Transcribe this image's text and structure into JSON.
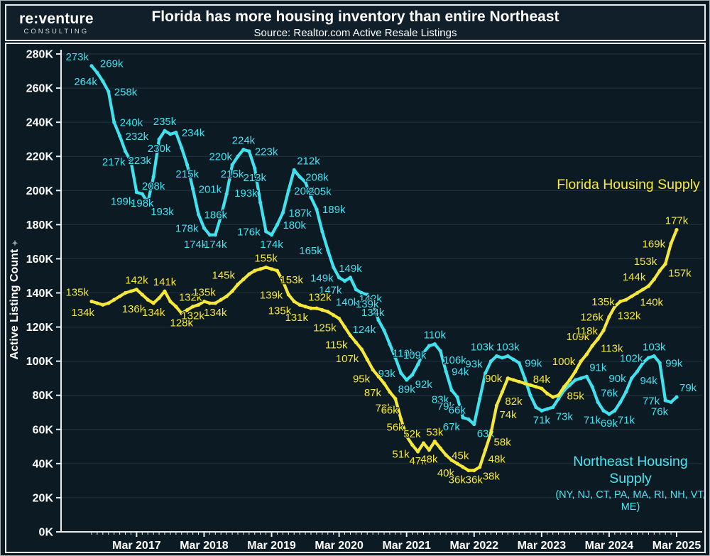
{
  "header": {
    "logo": "re:venture",
    "logo_sub": "CONSULTING",
    "title": "Florida has more housing inventory than entire Northeast",
    "subtitle": "Source: Realtor.com Active Resale Listings"
  },
  "chart_data": {
    "type": "line",
    "ylabel": "Active Listing Count",
    "ylabel_mark": "✦",
    "ylim": [
      0,
      280
    ],
    "grid": "horizontal",
    "y_ticks": [
      "0K",
      "20K",
      "40K",
      "60K",
      "80K",
      "100K",
      "120K",
      "140K",
      "160K",
      "180K",
      "200K",
      "220K",
      "240K",
      "260K",
      "280K"
    ],
    "x_tick_labels": [
      "Mar 2017",
      "Mar 2018",
      "Mar 2019",
      "Mar 2020",
      "Mar 2021",
      "Mar 2022",
      "Mar 2023",
      "Mar 2024",
      "Mar 2025"
    ],
    "x_tick_months": [
      8,
      20,
      32,
      44,
      56,
      68,
      80,
      92,
      104
    ],
    "x_start_label": "Jul 2016",
    "months_total": 105,
    "annotations": {
      "florida": {
        "label": "Florida Housing Supply",
        "color": "#f8e93c"
      },
      "northeast": {
        "label": "Northeast Housing Supply",
        "states": "(NY, NJ, CT, PA, MA, RI, NH, VT, ME)",
        "color": "#49e6f2"
      }
    },
    "series": [
      {
        "name": "Northeast Housing Supply",
        "color": "#41e2ef",
        "unit": "k",
        "points": [
          [
            273,
            "273k",
            "al"
          ],
          [
            269,
            "269k",
            "ar"
          ],
          [
            264,
            "264k",
            "l"
          ],
          [
            258,
            "258k",
            "r"
          ],
          [
            240,
            "240k",
            "r"
          ],
          [
            232,
            "232k",
            "r"
          ],
          [
            223,
            "223k",
            "br"
          ],
          [
            217,
            "217k",
            "l"
          ],
          [
            199,
            "199k",
            "bl"
          ],
          [
            198,
            "198k",
            "b"
          ],
          [
            193,
            "193k",
            "br"
          ],
          [
            208,
            "208k",
            "b"
          ],
          [
            230,
            "230k",
            "b"
          ],
          [
            235,
            "235k",
            "a"
          ],
          [
            233
          ],
          [
            234,
            "234k",
            "r"
          ],
          [
            225
          ],
          [
            215,
            "215k",
            "b"
          ],
          [
            201,
            "201k",
            "r"
          ],
          [
            186,
            "186k",
            "r"
          ],
          [
            178,
            "178k",
            "l"
          ],
          [
            174,
            "174k",
            "bl"
          ],
          [
            174,
            "174k",
            "b"
          ],
          [
            185
          ],
          [
            198
          ],
          [
            215,
            "215k",
            "b"
          ],
          [
            220,
            "220k",
            "l"
          ],
          [
            224,
            "224k",
            "a"
          ],
          [
            223,
            "223k",
            "r"
          ],
          [
            213,
            "213k",
            "b"
          ],
          [
            193,
            "193k",
            "al"
          ],
          [
            176,
            "176k",
            "l"
          ],
          [
            174,
            "174k",
            "b"
          ],
          [
            180,
            "180k",
            "r"
          ],
          [
            187,
            "187k",
            "r"
          ],
          [
            200,
            "200k",
            "r"
          ],
          [
            212,
            "212k",
            "ar"
          ],
          [
            208,
            "208k",
            "r"
          ],
          [
            205,
            "205k",
            "br"
          ],
          [
            196
          ],
          [
            189,
            "189k",
            "r"
          ],
          [
            176
          ],
          [
            165,
            "165k",
            "l"
          ],
          [
            155
          ],
          [
            149,
            "149k",
            "l"
          ],
          [
            147,
            "147k",
            "bl"
          ],
          [
            149,
            "149k",
            "a"
          ],
          [
            142,
            "142k",
            "br"
          ],
          [
            140,
            "140k",
            "bl"
          ],
          [
            139,
            "139k",
            "b"
          ],
          [
            134,
            "134k",
            "b"
          ],
          [
            124,
            "124k",
            "bl"
          ],
          [
            118
          ],
          [
            110,
            "110k",
            "br"
          ],
          [
            102
          ],
          [
            93,
            "93k",
            "l"
          ],
          [
            89,
            "89k",
            "b"
          ],
          [
            92,
            "92k",
            "br"
          ],
          [
            98
          ],
          [
            105
          ],
          [
            109,
            "109k",
            "bl"
          ],
          [
            110,
            "110k",
            "a"
          ],
          [
            106,
            "106k",
            "br"
          ],
          [
            94,
            "94k",
            "r"
          ],
          [
            83,
            "83k",
            "bl"
          ],
          [
            79,
            "79k",
            "bl"
          ],
          [
            67,
            "67k",
            "bl"
          ],
          [
            66,
            "66k",
            "al"
          ],
          [
            63,
            "63k",
            "br"
          ],
          [
            78
          ],
          [
            93,
            "93k",
            "al"
          ],
          [
            100
          ],
          [
            103,
            "103k",
            "al"
          ],
          [
            102
          ],
          [
            103,
            "103k",
            "a"
          ],
          [
            101
          ],
          [
            99,
            "99k",
            "r"
          ],
          [
            90
          ],
          [
            80
          ],
          [
            73
          ],
          [
            71,
            "71k",
            "b"
          ],
          [
            72
          ],
          [
            73,
            "73k",
            "br"
          ],
          [
            78
          ],
          [
            83
          ],
          [
            86
          ],
          [
            89
          ],
          [
            90
          ],
          [
            91,
            "91k",
            "ar"
          ],
          [
            85
          ],
          [
            76,
            "76k",
            "ar"
          ],
          [
            71,
            "71k",
            "bl"
          ],
          [
            69,
            "69k",
            "b"
          ],
          [
            71,
            "71k",
            "br"
          ],
          [
            76
          ],
          [
            82
          ],
          [
            90,
            "90k",
            "l"
          ],
          [
            94,
            "94k",
            "br"
          ],
          [
            99
          ],
          [
            102,
            "102k",
            "l"
          ],
          [
            103,
            "103k",
            "a"
          ],
          [
            99,
            "99k",
            "r"
          ],
          [
            77,
            "77k",
            "l"
          ],
          [
            76,
            "76k",
            "bl"
          ],
          [
            79,
            "79k",
            "ar"
          ]
        ]
      },
      {
        "name": "Florida Housing Supply",
        "color": "#f6e837",
        "unit": "k",
        "points": [
          [
            135,
            "135k",
            "al"
          ],
          [
            134,
            "134k",
            "bl"
          ],
          [
            133
          ],
          [
            134
          ],
          [
            136
          ],
          [
            138
          ],
          [
            140
          ],
          [
            141
          ],
          [
            142,
            "142k",
            "a"
          ],
          [
            139
          ],
          [
            136,
            "136k",
            "bl"
          ],
          [
            134,
            "134k",
            "b"
          ],
          [
            137
          ],
          [
            141,
            "141k",
            "a"
          ],
          [
            135
          ],
          [
            132,
            "132k",
            "ar"
          ],
          [
            128,
            "128k",
            "b"
          ],
          [
            130
          ],
          [
            132,
            "132k",
            "b"
          ],
          [
            133
          ],
          [
            135,
            "135k",
            "a"
          ],
          [
            134
          ],
          [
            134,
            "134k",
            "b"
          ],
          [
            136
          ],
          [
            138
          ],
          [
            141
          ],
          [
            145,
            "145k",
            "al"
          ],
          [
            148
          ],
          [
            151
          ],
          [
            153
          ],
          [
            154
          ],
          [
            155,
            "155k",
            "a"
          ],
          [
            154
          ],
          [
            153,
            "153k",
            "br"
          ],
          [
            147
          ],
          [
            139,
            "139k",
            "l"
          ],
          [
            135,
            "135k",
            "bl"
          ],
          [
            133
          ],
          [
            132,
            "132k",
            "ar"
          ],
          [
            131,
            "131k",
            "bl"
          ],
          [
            131
          ],
          [
            130
          ],
          [
            129
          ],
          [
            127
          ],
          [
            125,
            "125k",
            "bl"
          ],
          [
            120
          ],
          [
            115,
            "115k",
            "bl"
          ],
          [
            111
          ],
          [
            107,
            "107k",
            "bl"
          ],
          [
            101
          ],
          [
            95,
            "95k",
            "bl"
          ],
          [
            91
          ],
          [
            87,
            "87k",
            "bl"
          ],
          [
            82
          ],
          [
            78,
            "78k",
            "bl"
          ],
          [
            66,
            "66k",
            "al"
          ],
          [
            56,
            "56k",
            "al"
          ],
          [
            51,
            "51k",
            "bl"
          ],
          [
            47,
            "47k",
            "b"
          ],
          [
            52,
            "52k",
            "al"
          ],
          [
            48,
            "48k",
            "b"
          ],
          [
            53,
            "53k",
            "a"
          ],
          [
            49
          ],
          [
            45,
            "45k",
            "r"
          ],
          [
            42
          ],
          [
            40,
            "40k",
            "bl"
          ],
          [
            38
          ],
          [
            36,
            "36k",
            "bl"
          ],
          [
            36,
            "36k",
            "b"
          ],
          [
            38,
            "38k",
            "br"
          ],
          [
            48,
            "48k",
            "br"
          ],
          [
            58,
            "58k",
            "br"
          ],
          [
            74,
            "74k",
            "br"
          ],
          [
            82,
            "82k",
            "br"
          ],
          [
            90,
            "90k",
            "l"
          ],
          [
            89
          ],
          [
            88
          ],
          [
            87
          ],
          [
            86
          ],
          [
            85
          ],
          [
            84,
            "84k",
            "a"
          ],
          [
            81
          ],
          [
            79
          ],
          [
            80
          ],
          [
            85,
            "85k",
            "br"
          ],
          [
            89
          ],
          [
            94
          ],
          [
            100,
            "100k",
            "l"
          ],
          [
            104
          ],
          [
            109,
            "109k",
            "al"
          ],
          [
            113,
            "113k",
            "br"
          ],
          [
            118,
            "118k",
            "l"
          ],
          [
            126,
            "126k",
            "l"
          ],
          [
            132,
            "132k",
            "br"
          ],
          [
            135,
            "135k",
            "l"
          ],
          [
            136
          ],
          [
            138
          ],
          [
            140,
            "140k",
            "br"
          ],
          [
            142
          ],
          [
            144,
            "144k",
            "al"
          ],
          [
            148
          ],
          [
            153,
            "153k",
            "al"
          ],
          [
            157,
            "157k",
            "br"
          ],
          [
            169,
            "169k",
            "l"
          ],
          [
            177,
            "177k",
            "a"
          ]
        ]
      }
    ]
  }
}
